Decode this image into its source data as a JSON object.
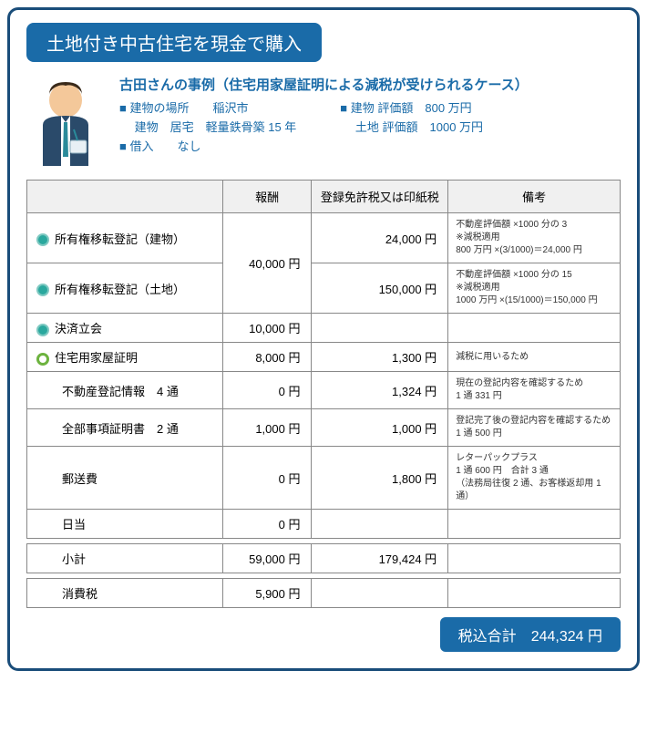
{
  "title": "土地付き中古住宅を現金で購入",
  "case": {
    "heading": "古田さんの事例（住宅用家屋証明による減税が受けられるケース）",
    "left": {
      "l1": "■ 建物の場所　　稲沢市",
      "l2": "　 建物　居宅　軽量鉄骨築 15 年",
      "l3": "■ 借入　　なし"
    },
    "right": {
      "l1": "■ 建物 評価額　800 万円",
      "l2": "　 土地 評価額　1000 万円"
    }
  },
  "headers": {
    "c1": "",
    "c2": "報酬",
    "c3": "登録免許税又は印紙税",
    "c4": "備考"
  },
  "rows": {
    "r1": {
      "label": "所有権移転登記（建物）",
      "tax": "24,000 円",
      "note": "不動産評価額 ×1000 分の 3\n※減税適用\n800 万円 ×(3/1000)＝24,000 円"
    },
    "fee12": "40,000 円",
    "r2": {
      "label": "所有権移転登記（土地）",
      "tax": "150,000 円",
      "note": "不動産評価額 ×1000 分の 15\n※減税適用\n1000 万円 ×(15/1000)＝150,000 円"
    },
    "r3": {
      "label": "決済立会",
      "fee": "10,000 円",
      "tax": "",
      "note": ""
    },
    "r4": {
      "label": "住宅用家屋証明",
      "fee": "8,000 円",
      "tax": "1,300 円",
      "note": "減税に用いるため"
    },
    "r5": {
      "label": "不動産登記情報　4 通",
      "fee": "0 円",
      "tax": "1,324 円",
      "note": "現在の登記内容を確認するため\n1 通 331 円"
    },
    "r6": {
      "label": "全部事項証明書　2 通",
      "fee": "1,000 円",
      "tax": "1,000 円",
      "note": "登記完了後の登記内容を確認するため　1 通 500 円"
    },
    "r7": {
      "label": "郵送費",
      "fee": "0 円",
      "tax": "1,800 円",
      "note": "レターパックプラス\n1 通 600 円　合計 3 通\n（法務局往復 2 通、お客様返却用 1 通）"
    },
    "r8": {
      "label": "日当",
      "fee": "0 円",
      "tax": "",
      "note": ""
    },
    "sub": {
      "label": "小計",
      "fee": "59,000 円",
      "tax": "179,424 円"
    },
    "vat": {
      "label": "消費税",
      "fee": "5,900 円"
    }
  },
  "total": {
    "label": "税込合計",
    "value": "244,324 円"
  },
  "colors": {
    "frame": "#1a4d7a",
    "accent": "#1a6ba8",
    "teal": "#2aa89e",
    "green": "#6db33f"
  }
}
